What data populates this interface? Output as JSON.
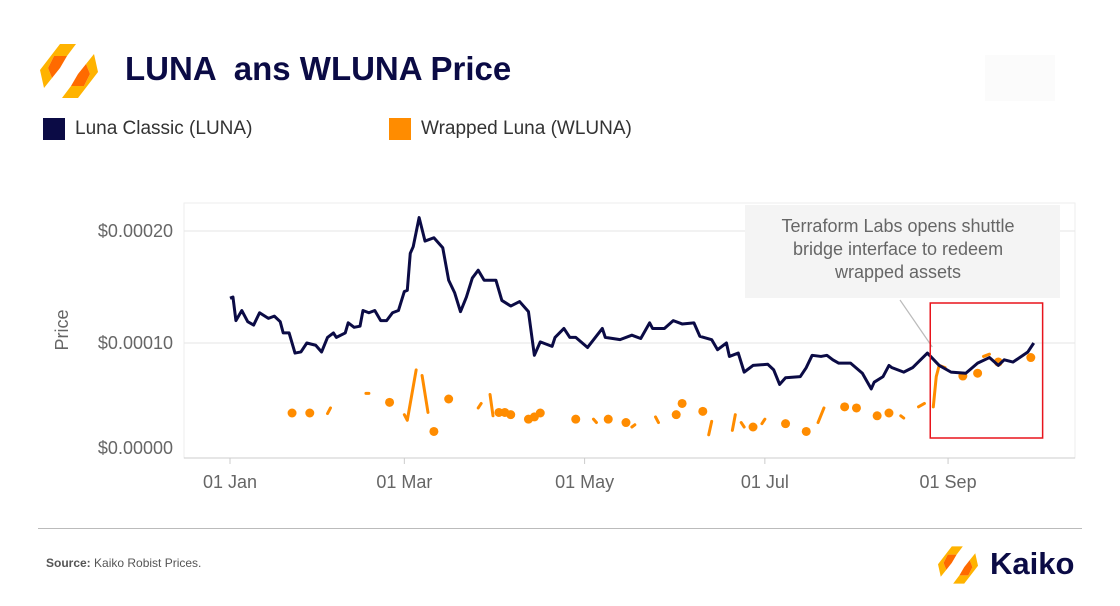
{
  "header": {
    "title": "LUNA  ans WLUNA Price"
  },
  "footer": {
    "source_label": "Source:",
    "source_text": " Kaiko Robist Prices.",
    "brand": "Kaiko"
  },
  "colors": {
    "luna": "#0b0b45",
    "wluna": "#ff8c00",
    "highlight": "#e8141c",
    "logo_a": "#ffb300",
    "logo_b": "#ff6a00"
  },
  "chart_data": {
    "type": "line",
    "title": "LUNA  ans WLUNA Price",
    "xlabel": "",
    "ylabel": "Price",
    "x_unit": "days since 01 Jan",
    "xlim": [
      -16,
      285
    ],
    "ylim": [
      0,
      0.00023
    ],
    "grid": true,
    "legend_position": "top-left",
    "x_ticks": [
      {
        "day": 0,
        "label": "01 Jan"
      },
      {
        "day": 59,
        "label": "01 Mar"
      },
      {
        "day": 120,
        "label": "01 May"
      },
      {
        "day": 181,
        "label": "01 Jul"
      },
      {
        "day": 243,
        "label": "01 Sep"
      }
    ],
    "y_ticks": [
      {
        "value": 0.0002,
        "label": "$0.00020"
      },
      {
        "value": 0.0001,
        "label": "$0.00010"
      },
      {
        "value": 0,
        "label": "$0.00000"
      }
    ],
    "annotation": {
      "text_lines": [
        "Terraform Labs opens shuttle",
        "bridge interface to redeem",
        "wrapped assets"
      ],
      "points_to_day": 238,
      "highlight_days": [
        239,
        275
      ]
    },
    "series": [
      {
        "name": "Luna Classic (LUNA)",
        "color": "#0b0b45",
        "segments": [
          [
            [
              0,
              0.00014
            ],
            [
              1,
              0.000141
            ],
            [
              2,
              0.00012
            ],
            [
              4,
              0.000129
            ],
            [
              6,
              0.000119
            ],
            [
              8,
              0.000116
            ],
            [
              10,
              0.000127
            ],
            [
              13,
              0.000122
            ],
            [
              15,
              0.000124
            ],
            [
              17,
              0.000119
            ],
            [
              18,
              0.000109
            ],
            [
              20,
              0.000109
            ],
            [
              22,
              9.1e-05
            ],
            [
              24,
              9.2e-05
            ],
            [
              26,
              0.0001
            ],
            [
              29,
              9.8e-05
            ],
            [
              31,
              9.2e-05
            ],
            [
              33,
              0.000105
            ],
            [
              35,
              0.000109
            ],
            [
              36,
              0.000105
            ],
            [
              39,
              0.000109
            ],
            [
              40,
              0.000118
            ],
            [
              42,
              0.000114
            ],
            [
              44,
              0.000115
            ],
            [
              45,
              0.000129
            ],
            [
              47,
              0.000127
            ],
            [
              49,
              0.000129
            ],
            [
              51,
              0.00012
            ],
            [
              53,
              0.00012
            ],
            [
              55,
              0.000127
            ],
            [
              57,
              0.000129
            ],
            [
              59,
              0.000146
            ],
            [
              60,
              0.000147
            ],
            [
              61,
              0.00018
            ],
            [
              62,
              0.000186
            ],
            [
              64,
              0.000212
            ],
            [
              66,
              0.000191
            ],
            [
              69,
              0.000194
            ],
            [
              72,
              0.000185
            ],
            [
              74,
              0.000156
            ],
            [
              76,
              0.000145
            ],
            [
              78,
              0.000128
            ],
            [
              80,
              0.000141
            ],
            [
              82,
              0.000158
            ],
            [
              84,
              0.000165
            ],
            [
              86,
              0.000156
            ],
            [
              90,
              0.000156
            ],
            [
              92,
              0.000138
            ],
            [
              95,
              0.000133
            ],
            [
              98,
              0.000137
            ],
            [
              101,
              0.000128
            ],
            [
              103,
              8.9e-05
            ],
            [
              105,
              0.000101
            ],
            [
              109,
              9.7e-05
            ],
            [
              110,
              0.000105
            ],
            [
              113,
              0.000113
            ],
            [
              115,
              0.000105
            ],
            [
              117,
              0.000105
            ],
            [
              121,
              9.6e-05
            ],
            [
              126,
              0.000113
            ],
            [
              127,
              0.000105
            ],
            [
              132,
              0.000103
            ],
            [
              136,
              0.000107
            ],
            [
              139,
              0.000104
            ],
            [
              142,
              0.000118
            ],
            [
              143,
              0.000113
            ],
            [
              147,
              0.000113
            ],
            [
              150,
              0.00012
            ],
            [
              153,
              0.000117
            ],
            [
              157,
              0.000118
            ],
            [
              159,
              0.000106
            ],
            [
              163,
              0.000103
            ],
            [
              165,
              9.4e-05
            ],
            [
              168,
              0.0001
            ],
            [
              169,
              8.8e-05
            ],
            [
              172,
              9.1e-05
            ],
            [
              174,
              7.4e-05
            ],
            [
              177,
              8e-05
            ],
            [
              182,
              8.1e-05
            ],
            [
              184,
              7.6e-05
            ],
            [
              186,
              6.3e-05
            ],
            [
              188,
              6.9e-05
            ],
            [
              193,
              7e-05
            ],
            [
              195,
              7.8e-05
            ],
            [
              197,
              8.9e-05
            ],
            [
              200,
              8.8e-05
            ],
            [
              202,
              8.9e-05
            ],
            [
              204,
              8.5e-05
            ],
            [
              206,
              8.2e-05
            ],
            [
              210,
              8.2e-05
            ],
            [
              214,
              7.3e-05
            ],
            [
              217,
              5.9e-05
            ],
            [
              218,
              6.5e-05
            ],
            [
              221,
              7e-05
            ],
            [
              223,
              8e-05
            ],
            [
              224,
              7.8e-05
            ],
            [
              228,
              7.4e-05
            ],
            [
              231,
              7.8e-05
            ],
            [
              236,
              9.1e-05
            ],
            [
              240,
              8e-05
            ],
            [
              244,
              7.4e-05
            ],
            [
              249,
              7.3e-05
            ],
            [
              253,
              8.2e-05
            ],
            [
              257,
              8.7e-05
            ],
            [
              260,
              8e-05
            ],
            [
              262,
              8.5e-05
            ],
            [
              265,
              8.3e-05
            ],
            [
              270,
              9.2e-05
            ],
            [
              272,
              0.0001
            ]
          ]
        ]
      },
      {
        "name": "Wrapped Luna (WLUNA)",
        "color": "#ff8c00",
        "segments": [
          [
            [
              21,
              3.75e-05
            ]
          ],
          [
            [
              27,
              3.75e-05
            ]
          ],
          [
            [
              33,
              3.7e-05
            ],
            [
              34,
              4.2e-05
            ]
          ],
          [
            [
              46,
              5.5e-05
            ],
            [
              47,
              5.5e-05
            ]
          ],
          [
            [
              54,
              4.7e-05
            ]
          ],
          [
            [
              59,
              3.6e-05
            ],
            [
              60,
              3.1e-05
            ],
            [
              63,
              7.6e-05
            ]
          ],
          [
            [
              65,
              7.1e-05
            ],
            [
              67,
              3.8e-05
            ]
          ],
          [
            [
              69,
              2.1e-05
            ]
          ],
          [
            [
              74,
              5e-05
            ]
          ],
          [
            [
              84,
              4.2e-05
            ],
            [
              85,
              4.6e-05
            ]
          ],
          [
            [
              88,
              5.4e-05
            ],
            [
              89,
              3.5e-05
            ]
          ],
          [
            [
              91,
              3.8e-05
            ]
          ],
          [
            [
              93,
              3.8e-05
            ]
          ],
          [
            [
              95,
              3.6e-05
            ]
          ],
          [
            [
              101,
              3.2e-05
            ]
          ],
          [
            [
              103,
              3.4e-05
            ]
          ],
          [
            [
              105,
              3.75e-05
            ]
          ],
          [
            [
              117,
              3.2e-05
            ]
          ],
          [
            [
              123,
              3.2e-05
            ],
            [
              124,
              2.9e-05
            ]
          ],
          [
            [
              128,
              3.2e-05
            ]
          ],
          [
            [
              134,
              2.9e-05
            ]
          ],
          [
            [
              136,
              2.5e-05
            ],
            [
              137,
              2.7e-05
            ]
          ],
          [
            [
              144,
              3.4e-05
            ],
            [
              145,
              2.9e-05
            ]
          ],
          [
            [
              151,
              3.6e-05
            ]
          ],
          [
            [
              153,
              4.6e-05
            ]
          ],
          [
            [
              160,
              3.9e-05
            ]
          ],
          [
            [
              162,
              1.8e-05
            ],
            [
              163,
              3e-05
            ]
          ],
          [
            [
              170,
              2.2e-05
            ],
            [
              171,
              3.6e-05
            ]
          ],
          [
            [
              173,
              2.9e-05
            ],
            [
              174,
              2.5e-05
            ]
          ],
          [
            [
              177,
              2.5e-05
            ]
          ],
          [
            [
              180,
              2.8e-05
            ],
            [
              181,
              3.2e-05
            ]
          ],
          [
            [
              188,
              2.8e-05
            ]
          ],
          [
            [
              195,
              2.1e-05
            ]
          ],
          [
            [
              199,
              2.9e-05
            ],
            [
              201,
              4.2e-05
            ]
          ],
          [
            [
              208,
              4.3e-05
            ]
          ],
          [
            [
              212,
              4.2e-05
            ]
          ],
          [
            [
              219,
              3.5e-05
            ]
          ],
          [
            [
              223,
              3.75e-05
            ]
          ],
          [
            [
              227,
              3.5e-05
            ],
            [
              228,
              3.3e-05
            ]
          ],
          [
            [
              233,
              4.3e-05
            ],
            [
              235,
              4.6e-05
            ]
          ],
          [
            [
              238,
              4.3e-05
            ],
            [
              239,
              7e-05
            ],
            [
              240,
              8e-05
            ],
            [
              242,
              7.8e-05
            ]
          ],
          [
            [
              248,
              7.05e-05
            ]
          ],
          [
            [
              253,
              7.3e-05
            ]
          ],
          [
            [
              255,
              8.8e-05
            ],
            [
              257,
              9e-05
            ]
          ],
          [
            [
              260,
              8.3e-05
            ]
          ],
          [
            [
              271,
              8.7e-05
            ]
          ]
        ]
      }
    ]
  }
}
